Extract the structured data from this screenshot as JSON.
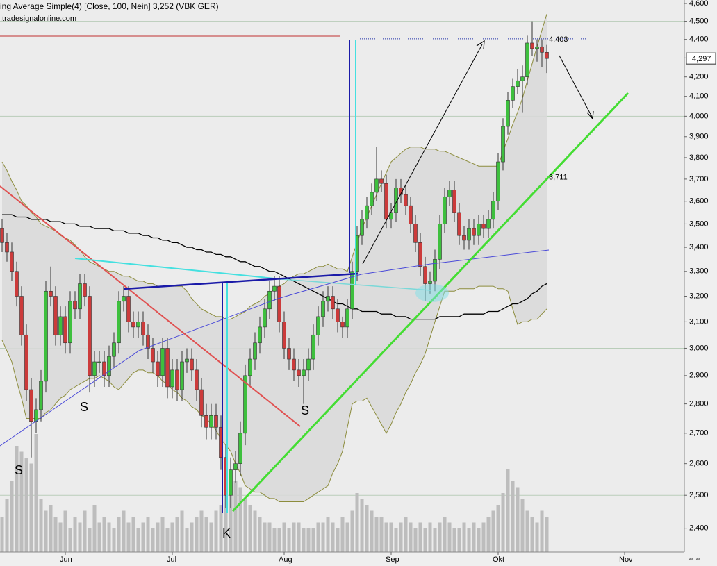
{
  "chart_data": {
    "type": "candlestick",
    "title": "ing Average Simple(4) [Close, 100, Nein] 3,252 (VBK GER)",
    "subtitle": ".tradesignalonline.com",
    "log_scale": true,
    "ylim": [
      2.33,
      4.62
    ],
    "yticks": [
      {
        "value": 4.6,
        "label": "4,600"
      },
      {
        "value": 4.5,
        "label": "4,500"
      },
      {
        "value": 4.4,
        "label": "4,400"
      },
      {
        "value": 4.3,
        "label": "4,300"
      },
      {
        "value": 4.2,
        "label": "4,200"
      },
      {
        "value": 4.1,
        "label": "4,100"
      },
      {
        "value": 4.0,
        "label": "4,000"
      },
      {
        "value": 3.9,
        "label": "3,900"
      },
      {
        "value": 3.8,
        "label": "3,800"
      },
      {
        "value": 3.7,
        "label": "3,700"
      },
      {
        "value": 3.6,
        "label": "3,600"
      },
      {
        "value": 3.5,
        "label": "3,500"
      },
      {
        "value": 3.4,
        "label": "3,400"
      },
      {
        "value": 3.3,
        "label": "3,300"
      },
      {
        "value": 3.2,
        "label": "3,200"
      },
      {
        "value": 3.1,
        "label": "3,100"
      },
      {
        "value": 3.0,
        "label": "3,000"
      },
      {
        "value": 2.9,
        "label": "2,900"
      },
      {
        "value": 2.8,
        "label": "2,800"
      },
      {
        "value": 2.7,
        "label": "2,700"
      },
      {
        "value": 2.6,
        "label": "2,600"
      },
      {
        "value": 2.5,
        "label": "2,500"
      },
      {
        "value": 2.4,
        "label": "2,400"
      }
    ],
    "grid": true,
    "up_color": "#3ec03e",
    "down_color": "#cc3b3b",
    "volume_color": "#bdbdbd",
    "band_color": "#8c8c3c",
    "band_fill": "#d9d9d9",
    "ma_color": "#000000",
    "categories": [
      null,
      null,
      null,
      null,
      null,
      null,
      null,
      null,
      null,
      null,
      null,
      null,
      null,
      "Jun",
      null,
      null,
      null,
      null,
      null,
      null,
      null,
      null,
      null,
      null,
      null,
      null,
      null,
      null,
      null,
      null,
      null,
      null,
      null,
      null,
      null,
      "Jul",
      null,
      null,
      null,
      null,
      null,
      null,
      null,
      null,
      null,
      null,
      null,
      null,
      null,
      null,
      null,
      null,
      null,
      null,
      null,
      null,
      null,
      null,
      "Aug",
      null,
      null,
      null,
      null,
      null,
      null,
      null,
      null,
      null,
      null,
      null,
      null,
      null,
      null,
      null,
      null,
      null,
      null,
      null,
      null,
      null,
      "Sep",
      null,
      null,
      null,
      null,
      null,
      null,
      null,
      null,
      null,
      null,
      null,
      null,
      null,
      null,
      null,
      null,
      null,
      null,
      null,
      null,
      null,
      "Okt",
      null,
      null,
      null,
      null,
      null,
      null,
      null,
      null,
      null,
      null,
      null,
      null,
      null,
      null,
      null,
      null,
      null,
      null,
      null,
      null,
      null,
      null,
      null,
      null,
      null,
      "Nov"
    ],
    "open": [
      3.48,
      3.42,
      3.38,
      3.3,
      3.2,
      3.05,
      2.85,
      2.74,
      2.78,
      2.88,
      3.22,
      3.2,
      3.05,
      3.12,
      3.02,
      3.18,
      3.15,
      3.25,
      3.2,
      2.9,
      2.95,
      2.95,
      2.9,
      2.97,
      3.02,
      3.18,
      3.2,
      3.1,
      3.08,
      3.1,
      3.05,
      3.0,
      2.95,
      2.9,
      3.0,
      2.86,
      2.92,
      2.85,
      2.95,
      2.96,
      2.92,
      2.85,
      2.76,
      2.72,
      2.76,
      2.72,
      2.62,
      2.5,
      2.58,
      2.6,
      2.7,
      2.9,
      2.96,
      3.02,
      3.08,
      3.15,
      3.22,
      3.24,
      3.1,
      3.0,
      2.96,
      2.92,
      2.9,
      2.92,
      2.96,
      3.05,
      3.12,
      3.18,
      3.2,
      3.15,
      3.1,
      3.08,
      3.15,
      3.3,
      3.45,
      3.52,
      3.58,
      3.64,
      3.7,
      3.68,
      3.52,
      3.55,
      3.66,
      3.63,
      3.58,
      3.5,
      3.42,
      3.32,
      3.25,
      3.26,
      3.35,
      3.5,
      3.62,
      3.65,
      3.55,
      3.45,
      3.43,
      3.48,
      3.45,
      3.5,
      3.48,
      3.52,
      3.6,
      3.78,
      3.95,
      4.08,
      4.15,
      4.18,
      4.2,
      4.38,
      4.35,
      4.36,
      4.33,
      null,
      null,
      null,
      null,
      null,
      null,
      null,
      null,
      null,
      null,
      null,
      null,
      null,
      null,
      null,
      null
    ],
    "high": [
      3.52,
      3.46,
      3.42,
      3.34,
      3.24,
      3.09,
      2.89,
      2.82,
      2.92,
      3.26,
      3.32,
      3.24,
      3.16,
      3.16,
      3.22,
      3.22,
      3.29,
      3.29,
      3.24,
      2.99,
      2.99,
      2.99,
      3.01,
      3.06,
      3.22,
      3.24,
      3.24,
      3.14,
      3.14,
      3.14,
      3.09,
      3.04,
      2.99,
      3.04,
      3.04,
      2.96,
      2.96,
      2.99,
      3.0,
      3.0,
      2.96,
      2.89,
      2.8,
      2.8,
      2.8,
      2.76,
      2.66,
      2.62,
      2.64,
      2.74,
      2.94,
      3.0,
      3.06,
      3.12,
      3.19,
      3.26,
      3.28,
      3.28,
      3.14,
      3.04,
      3.0,
      2.96,
      2.96,
      3.0,
      3.09,
      3.16,
      3.22,
      3.24,
      3.24,
      3.19,
      3.12,
      3.19,
      3.34,
      3.49,
      3.56,
      3.62,
      3.68,
      3.85,
      3.74,
      3.72,
      3.59,
      3.7,
      3.7,
      3.67,
      3.62,
      3.54,
      3.46,
      3.36,
      3.3,
      3.39,
      3.54,
      3.66,
      3.69,
      3.69,
      3.59,
      3.49,
      3.52,
      3.52,
      3.54,
      3.54,
      3.56,
      3.64,
      3.82,
      3.99,
      4.12,
      4.19,
      4.24,
      4.26,
      4.42,
      4.5,
      4.4,
      4.4,
      4.37,
      null,
      null,
      null,
      null,
      null,
      null,
      null,
      null,
      null,
      null,
      null,
      null,
      null,
      null,
      null,
      null
    ],
    "low": [
      3.38,
      3.34,
      3.26,
      3.16,
      3.01,
      2.81,
      2.62,
      2.7,
      2.74,
      2.84,
      3.16,
      3.01,
      3.01,
      2.98,
      2.98,
      3.11,
      3.11,
      3.16,
      2.84,
      2.86,
      2.91,
      2.86,
      2.86,
      2.93,
      2.98,
      3.14,
      3.06,
      3.04,
      3.04,
      3.01,
      2.96,
      2.91,
      2.86,
      2.86,
      2.82,
      2.82,
      2.81,
      2.81,
      2.91,
      2.88,
      2.81,
      2.72,
      2.68,
      2.68,
      2.68,
      2.58,
      2.46,
      2.46,
      2.54,
      2.56,
      2.66,
      2.86,
      2.92,
      2.98,
      3.04,
      3.11,
      3.18,
      3.06,
      2.96,
      2.92,
      2.88,
      2.86,
      2.8,
      2.88,
      2.92,
      3.01,
      3.08,
      3.14,
      3.11,
      3.06,
      3.04,
      3.04,
      3.11,
      3.26,
      3.41,
      3.48,
      3.54,
      3.6,
      3.64,
      3.48,
      3.48,
      3.51,
      3.59,
      3.54,
      3.46,
      3.38,
      3.28,
      3.18,
      3.21,
      3.22,
      3.31,
      3.46,
      3.58,
      3.51,
      3.41,
      3.39,
      3.39,
      3.41,
      3.41,
      3.44,
      3.44,
      3.48,
      3.56,
      3.74,
      3.91,
      4.04,
      4.11,
      4.02,
      4.16,
      4.31,
      4.28,
      4.25,
      4.22,
      null,
      null,
      null,
      null,
      null,
      null,
      null,
      null,
      null,
      null,
      null,
      null,
      null,
      null,
      null,
      null
    ],
    "close": [
      3.42,
      3.38,
      3.3,
      3.2,
      3.05,
      2.85,
      2.74,
      2.78,
      2.88,
      3.22,
      3.2,
      3.05,
      3.12,
      3.02,
      3.18,
      3.15,
      3.25,
      3.2,
      2.9,
      2.95,
      2.95,
      2.9,
      2.97,
      3.02,
      3.18,
      3.2,
      3.1,
      3.08,
      3.1,
      3.05,
      3.0,
      2.95,
      2.9,
      3.0,
      2.86,
      2.92,
      2.85,
      2.95,
      2.96,
      2.92,
      2.85,
      2.76,
      2.72,
      2.76,
      2.72,
      2.62,
      2.5,
      2.58,
      2.6,
      2.7,
      2.9,
      2.96,
      3.02,
      3.08,
      3.15,
      3.22,
      3.24,
      3.1,
      3.0,
      2.96,
      2.92,
      2.9,
      2.92,
      2.96,
      3.05,
      3.12,
      3.18,
      3.2,
      3.15,
      3.1,
      3.08,
      3.15,
      3.3,
      3.45,
      3.52,
      3.58,
      3.64,
      3.7,
      3.68,
      3.52,
      3.55,
      3.66,
      3.63,
      3.58,
      3.5,
      3.42,
      3.32,
      3.25,
      3.26,
      3.35,
      3.5,
      3.62,
      3.65,
      3.55,
      3.45,
      3.43,
      3.48,
      3.45,
      3.5,
      3.48,
      3.52,
      3.6,
      3.78,
      3.95,
      4.08,
      4.15,
      4.18,
      4.2,
      4.38,
      4.35,
      4.36,
      4.33,
      4.297,
      null,
      null,
      null,
      null,
      null,
      null,
      null,
      null,
      null,
      null,
      null,
      null,
      null,
      null,
      null,
      null
    ],
    "volume": [
      30,
      45,
      60,
      90,
      85,
      80,
      75,
      100,
      45,
      35,
      40,
      30,
      25,
      35,
      20,
      30,
      25,
      35,
      20,
      40,
      25,
      30,
      25,
      20,
      30,
      35,
      25,
      30,
      20,
      25,
      30,
      20,
      25,
      30,
      20,
      25,
      30,
      35,
      20,
      25,
      30,
      35,
      30,
      25,
      35,
      40,
      55,
      50,
      60,
      55,
      45,
      40,
      35,
      30,
      25,
      25,
      20,
      20,
      25,
      20,
      25,
      25,
      20,
      20,
      20,
      25,
      25,
      30,
      25,
      20,
      30,
      25,
      35,
      50,
      45,
      40,
      35,
      30,
      30,
      25,
      25,
      20,
      25,
      30,
      25,
      20,
      25,
      20,
      25,
      20,
      25,
      30,
      25,
      20,
      20,
      25,
      20,
      25,
      20,
      25,
      30,
      35,
      40,
      50,
      70,
      60,
      55,
      45,
      35,
      30,
      25,
      35,
      30,
      null,
      null,
      null,
      null,
      null,
      null,
      null,
      null,
      null,
      null,
      null,
      null,
      null,
      null,
      null,
      null
    ],
    "bollinger_upper": [
      3.78,
      3.74,
      3.69,
      3.65,
      3.6,
      3.58,
      3.55,
      3.53,
      3.5,
      3.49,
      3.48,
      3.47,
      3.45,
      3.44,
      3.43,
      3.41,
      3.39,
      3.36,
      3.34,
      3.33,
      3.32,
      3.31,
      3.3,
      3.3,
      3.29,
      3.28,
      3.28,
      3.27,
      3.26,
      3.26,
      3.25,
      3.25,
      3.24,
      3.24,
      3.24,
      3.24,
      3.24,
      3.24,
      3.22,
      3.19,
      3.17,
      3.15,
      3.14,
      3.13,
      3.12,
      3.12,
      3.11,
      3.11,
      3.12,
      3.13,
      3.14,
      3.16,
      3.17,
      3.18,
      3.2,
      3.21,
      3.23,
      3.24,
      3.25,
      3.27,
      3.28,
      3.29,
      3.29,
      3.3,
      3.31,
      3.32,
      3.32,
      3.33,
      3.32,
      3.31,
      3.31,
      3.3,
      3.36,
      3.42,
      3.48,
      3.53,
      3.58,
      3.63,
      3.68,
      3.73,
      3.78,
      3.8,
      3.82,
      3.84,
      3.85,
      3.85,
      3.85,
      3.84,
      3.84,
      3.84,
      3.83,
      3.83,
      3.82,
      3.81,
      3.8,
      3.79,
      3.78,
      3.77,
      3.76,
      3.76,
      3.76,
      3.76,
      3.76,
      3.83,
      3.89,
      3.96,
      4.02,
      4.09,
      4.18,
      4.27,
      4.36,
      4.45,
      4.54,
      null,
      null,
      null,
      null,
      null,
      null,
      null,
      null,
      null,
      null,
      null,
      null,
      null,
      null,
      null,
      null
    ],
    "bollinger_lower": [
      3.03,
      2.99,
      2.95,
      2.88,
      2.82,
      2.75,
      2.75,
      2.75,
      2.75,
      2.77,
      2.78,
      2.8,
      2.82,
      2.83,
      2.85,
      2.86,
      2.87,
      2.88,
      2.89,
      2.89,
      2.9,
      2.89,
      2.88,
      2.86,
      2.85,
      2.87,
      2.89,
      2.91,
      2.92,
      2.92,
      2.91,
      2.91,
      2.9,
      2.88,
      2.87,
      2.85,
      2.84,
      2.82,
      2.81,
      2.79,
      2.78,
      2.76,
      2.75,
      2.73,
      2.71,
      2.68,
      2.66,
      2.64,
      2.6,
      2.57,
      2.53,
      2.52,
      2.51,
      2.51,
      2.5,
      2.49,
      2.49,
      2.48,
      2.48,
      2.48,
      2.48,
      2.48,
      2.48,
      2.49,
      2.5,
      2.51,
      2.52,
      2.53,
      2.57,
      2.6,
      2.64,
      2.72,
      2.8,
      2.81,
      2.81,
      2.82,
      2.79,
      2.76,
      2.73,
      2.7,
      2.73,
      2.77,
      2.8,
      2.84,
      2.87,
      2.91,
      2.94,
      2.98,
      3.04,
      3.1,
      3.16,
      3.22,
      3.22,
      3.22,
      3.23,
      3.23,
      3.23,
      3.23,
      3.24,
      3.24,
      3.24,
      3.24,
      3.23,
      3.23,
      3.22,
      3.15,
      3.09,
      3.1,
      3.1,
      3.11,
      3.11,
      3.13,
      3.15,
      null,
      null,
      null,
      null,
      null,
      null,
      null,
      null,
      null,
      null,
      null,
      null,
      null,
      null,
      null,
      null
    ],
    "ma": [
      3.54,
      3.54,
      3.54,
      3.53,
      3.53,
      3.53,
      3.52,
      3.52,
      3.52,
      3.52,
      3.51,
      3.51,
      3.51,
      3.5,
      3.5,
      3.5,
      3.49,
      3.49,
      3.49,
      3.48,
      3.48,
      3.48,
      3.48,
      3.47,
      3.47,
      3.47,
      3.46,
      3.46,
      3.46,
      3.45,
      3.45,
      3.44,
      3.44,
      3.43,
      3.43,
      3.42,
      3.42,
      3.41,
      3.4,
      3.4,
      3.39,
      3.39,
      3.38,
      3.38,
      3.37,
      3.37,
      3.36,
      3.36,
      3.35,
      3.34,
      3.34,
      3.33,
      3.32,
      3.32,
      3.31,
      3.3,
      3.3,
      3.29,
      3.28,
      3.27,
      3.26,
      3.25,
      3.24,
      3.23,
      3.22,
      3.21,
      3.2,
      3.19,
      3.18,
      3.17,
      3.17,
      3.16,
      3.15,
      3.15,
      3.14,
      3.14,
      3.14,
      3.14,
      3.13,
      3.13,
      3.13,
      3.12,
      3.12,
      3.12,
      3.11,
      3.11,
      3.11,
      3.11,
      3.11,
      3.11,
      3.12,
      3.12,
      3.12,
      3.12,
      3.12,
      3.13,
      3.13,
      3.13,
      3.13,
      3.13,
      3.14,
      3.14,
      3.14,
      3.15,
      3.16,
      3.17,
      3.17,
      3.18,
      3.19,
      3.21,
      3.22,
      3.24,
      3.25,
      null,
      null,
      null,
      null,
      null,
      null,
      null,
      null,
      null,
      null,
      null,
      null,
      null,
      null,
      null,
      null
    ],
    "levels": [
      {
        "value": 4.403,
        "label": "4,403",
        "color": "#1f2fa8",
        "dotted_line": true
      },
      {
        "value": 3.711,
        "label": "3,711",
        "color": "#3ccc3c",
        "dotted_line": false
      }
    ],
    "last_price": {
      "value": 4.297,
      "label": "4,297"
    },
    "annotations": [
      {
        "text": "S",
        "color": "#3ad6d6"
      },
      {
        "text": "S",
        "color": "#5a5ad0"
      },
      {
        "text": "K",
        "color": "#5a5ad0"
      },
      {
        "text": "S",
        "color": "#5a5ad0"
      }
    ]
  }
}
